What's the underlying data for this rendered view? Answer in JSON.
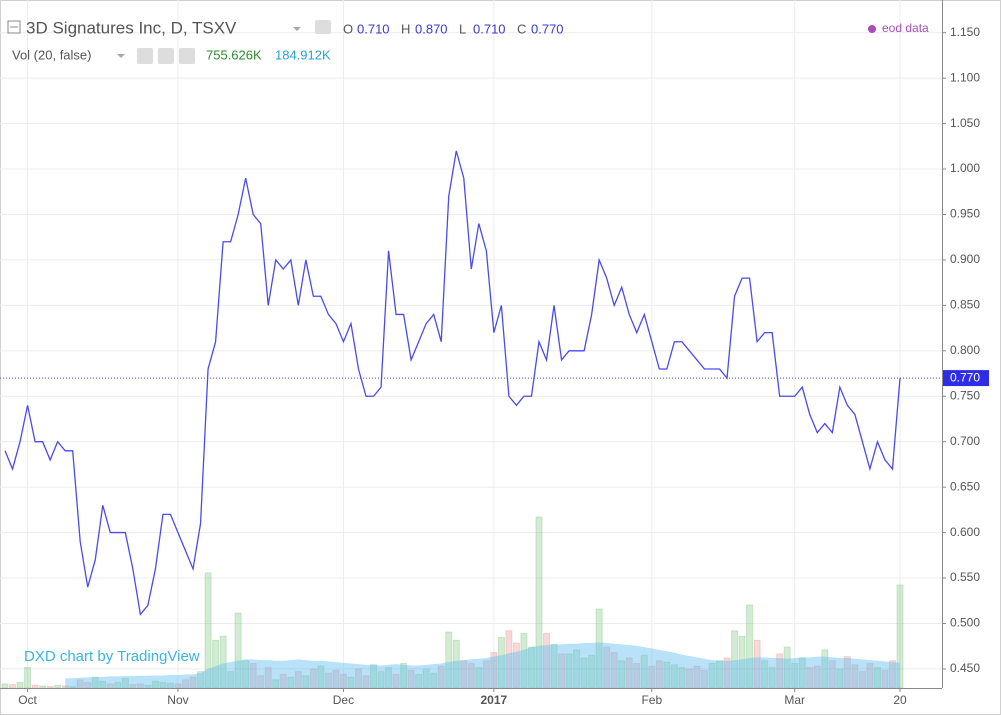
{
  "chart_data": {
    "type": "line",
    "title": "3D Signatures Inc, D, TSXV",
    "ohlc": [
      {
        "key": "O",
        "text": "0.710"
      },
      {
        "key": "H",
        "text": "0.870"
      },
      {
        "key": "L",
        "text": "0.710"
      },
      {
        "key": "C",
        "text": "0.770"
      }
    ],
    "volume_title": "Vol (20, false)",
    "volume_texts": [
      "755.626K",
      "184.912K"
    ],
    "source_label": "eod data",
    "watermark": "DXD chart by TradingView",
    "categories": [
      null,
      null,
      null,
      "Oct",
      null,
      null,
      null,
      null,
      null,
      null,
      null,
      null,
      null,
      null,
      null,
      null,
      null,
      null,
      null,
      null,
      null,
      null,
      null,
      "Nov",
      null,
      null,
      null,
      null,
      null,
      null,
      null,
      null,
      null,
      null,
      null,
      null,
      null,
      null,
      null,
      null,
      null,
      null,
      null,
      null,
      null,
      "Dec",
      null,
      null,
      null,
      null,
      null,
      null,
      null,
      null,
      null,
      null,
      null,
      null,
      null,
      null,
      null,
      null,
      null,
      null,
      null,
      "2017",
      null,
      null,
      null,
      null,
      null,
      null,
      null,
      null,
      null,
      null,
      null,
      null,
      null,
      null,
      null,
      null,
      null,
      null,
      null,
      null,
      "Feb",
      null,
      null,
      null,
      null,
      null,
      null,
      null,
      null,
      null,
      null,
      null,
      null,
      null,
      null,
      null,
      null,
      null,
      null,
      "Mar",
      null,
      null,
      null,
      null,
      null,
      null,
      null,
      null,
      null,
      null,
      null,
      null,
      null,
      "20"
    ],
    "series": [
      {
        "name": "3D Signatures Inc",
        "color": "#4a4aef",
        "last_label": "0.770",
        "values": [
          0.69,
          0.67,
          0.7,
          0.74,
          0.7,
          0.7,
          0.68,
          0.7,
          0.69,
          0.69,
          0.59,
          0.54,
          0.57,
          0.63,
          0.6,
          0.6,
          0.6,
          0.56,
          0.51,
          0.52,
          0.56,
          0.62,
          0.62,
          0.6,
          0.58,
          0.56,
          0.61,
          0.78,
          0.81,
          0.92,
          0.92,
          0.95,
          0.99,
          0.95,
          0.94,
          0.85,
          0.9,
          0.89,
          0.9,
          0.85,
          0.9,
          0.86,
          0.86,
          0.84,
          0.83,
          0.81,
          0.83,
          0.78,
          0.75,
          0.75,
          0.76,
          0.91,
          0.84,
          0.84,
          0.79,
          0.81,
          0.83,
          0.84,
          0.81,
          0.97,
          1.02,
          0.99,
          0.89,
          0.94,
          0.91,
          0.82,
          0.85,
          0.75,
          0.74,
          0.75,
          0.75,
          0.81,
          0.79,
          0.85,
          0.79,
          0.8,
          0.8,
          0.8,
          0.84,
          0.9,
          0.88,
          0.85,
          0.87,
          0.84,
          0.82,
          0.84,
          0.81,
          0.78,
          0.78,
          0.81,
          0.81,
          0.8,
          0.79,
          0.78,
          0.78,
          0.78,
          0.77,
          0.86,
          0.88,
          0.88,
          0.81,
          0.82,
          0.82,
          0.75,
          0.75,
          0.75,
          0.76,
          0.73,
          0.71,
          0.72,
          0.71,
          0.76,
          0.74,
          0.73,
          0.7,
          0.67,
          0.7,
          0.68,
          0.67,
          0.77
        ]
      },
      {
        "name": "Vol",
        "axis": "y2",
        "up_color": "rgba(110,190,110,0.30)",
        "down_color": "rgba(230,130,130,0.30)",
        "values": [
          30,
          25,
          40,
          150,
          20,
          15,
          10,
          20,
          15,
          10,
          60,
          40,
          80,
          50,
          30,
          40,
          70,
          25,
          30,
          20,
          50,
          40,
          35,
          30,
          60,
          80,
          120,
          845,
          350,
          380,
          120,
          550,
          200,
          180,
          90,
          150,
          60,
          100,
          80,
          120,
          90,
          140,
          160,
          110,
          130,
          100,
          80,
          140,
          90,
          170,
          120,
          150,
          100,
          180,
          130,
          100,
          140,
          110,
          160,
          410,
          350,
          200,
          180,
          150,
          200,
          260,
          370,
          420,
          330,
          400,
          300,
          1255,
          400,
          320,
          250,
          250,
          280,
          220,
          240,
          580,
          300,
          260,
          200,
          220,
          180,
          240,
          160,
          200,
          190,
          170,
          150,
          140,
          160,
          130,
          180,
          200,
          220,
          420,
          380,
          610,
          350,
          200,
          150,
          250,
          300,
          180,
          220,
          150,
          160,
          280,
          200,
          140,
          230,
          170,
          120,
          180,
          150,
          130,
          200,
          755.626
        ]
      },
      {
        "name": "Vol MA",
        "axis": "y2",
        "color": "rgba(100,190,240,0.45)",
        "values": [
          null,
          null,
          null,
          null,
          null,
          null,
          null,
          null,
          70,
          72,
          75,
          78,
          80,
          82,
          85,
          85,
          88,
          88,
          90,
          90,
          92,
          92,
          95,
          95,
          98,
          100,
          110,
          140,
          160,
          180,
          190,
          200,
          210,
          210,
          205,
          205,
          200,
          200,
          205,
          210,
          205,
          200,
          200,
          195,
          190,
          185,
          180,
          175,
          170,
          170,
          165,
          170,
          175,
          170,
          165,
          165,
          170,
          175,
          180,
          190,
          200,
          205,
          210,
          215,
          220,
          230,
          240,
          255,
          265,
          280,
          300,
          310,
          315,
          320,
          320,
          325,
          325,
          330,
          330,
          335,
          330,
          325,
          320,
          315,
          310,
          300,
          290,
          280,
          270,
          260,
          245,
          235,
          225,
          215,
          205,
          200,
          200,
          205,
          210,
          220,
          225,
          225,
          220,
          220,
          215,
          220,
          225,
          225,
          230,
          230,
          225,
          220,
          220,
          215,
          210,
          205,
          200,
          195,
          190,
          184.912
        ]
      }
    ],
    "ylim": [
      0.429,
      1.186
    ],
    "y2lim": [
      0,
      5050
    ],
    "yticks": [
      {
        "value": 0.45,
        "label": "0.450"
      },
      {
        "value": 0.5,
        "label": "0.500"
      },
      {
        "value": 0.55,
        "label": "0.550"
      },
      {
        "value": 0.6,
        "label": "0.600"
      },
      {
        "value": 0.65,
        "label": "0.650"
      },
      {
        "value": 0.7,
        "label": "0.700"
      },
      {
        "value": 0.75,
        "label": "0.750"
      },
      {
        "value": 0.8,
        "label": "0.800"
      },
      {
        "value": 0.85,
        "label": "0.850"
      },
      {
        "value": 0.9,
        "label": "0.900"
      },
      {
        "value": 0.95,
        "label": "0.950"
      },
      {
        "value": 1.0,
        "label": "1.000"
      },
      {
        "value": 1.05,
        "label": "1.050"
      },
      {
        "value": 1.1,
        "label": "1.100"
      },
      {
        "value": 1.15,
        "label": "1.150"
      }
    ],
    "grid": true
  }
}
